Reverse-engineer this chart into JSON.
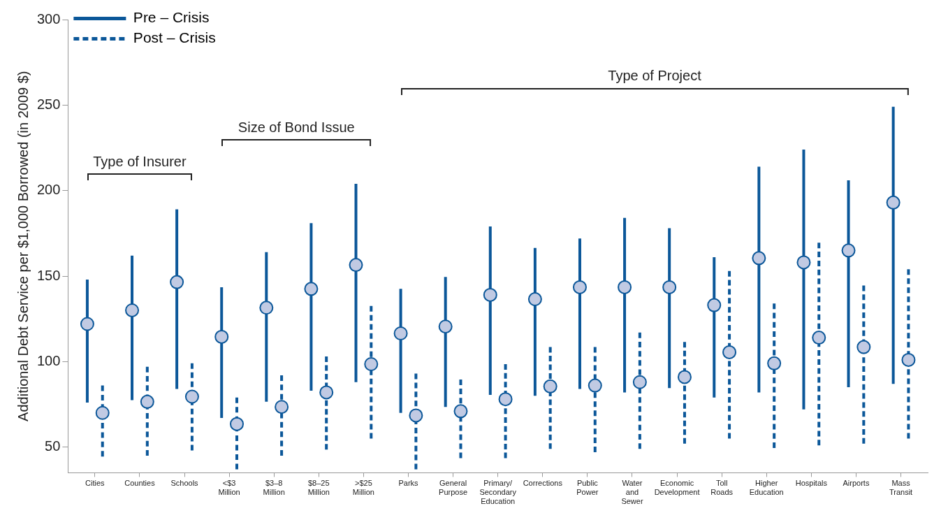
{
  "chart_data": {
    "type": "scatter",
    "ylabel": "Additional Debt Service per $1,000 Borrowed (in 2009 $)",
    "categories": [
      "Cities",
      "Counties",
      "Schools",
      "<$3 Million",
      "$3–8 Million",
      "$8–25 Million",
      ">$25 Million",
      "Parks",
      "General Purpose",
      "Primary/ Secondary Education",
      "Corrections",
      "Public Power",
      "Water and Sewer",
      "Economic Development",
      "Toll Roads",
      "Higher Education",
      "Hospitals",
      "Airports",
      "Mass Transit"
    ],
    "ylim": [
      35,
      300
    ],
    "yticks": [
      50,
      100,
      150,
      200,
      250,
      300
    ],
    "grid": false,
    "legend": "top left",
    "marker": "circle",
    "annotations": [
      "Type of Insurer",
      "Size of Bond Issue",
      "Type of Project"
    ],
    "series": [
      {
        "name": "Pre – Crisis",
        "color": "#0b5799",
        "line_style": "solid",
        "values": [
          122,
          130,
          146.5,
          114.5,
          131.5,
          142.5,
          156.5,
          116.5,
          120.5,
          139,
          136.5,
          143.5,
          143.5,
          143.5,
          133,
          160.5,
          158,
          165,
          193
        ],
        "errors": [
          [
            76,
            148
          ],
          [
            77.5,
            162
          ],
          [
            84,
            189
          ],
          [
            67,
            143.5
          ],
          [
            76.5,
            164
          ],
          [
            83,
            181
          ],
          [
            88,
            204
          ],
          [
            70,
            142.5
          ],
          [
            73.5,
            149.5
          ],
          [
            80.5,
            179
          ],
          [
            80,
            166.5
          ],
          [
            84,
            172
          ],
          [
            82,
            184
          ],
          [
            84.5,
            178
          ],
          [
            79,
            161
          ],
          [
            82,
            214
          ],
          [
            72,
            224
          ],
          [
            85,
            206
          ],
          [
            87,
            249
          ]
        ]
      },
      {
        "name": "Post – Crisis",
        "color": "#0b5799",
        "line_style": "dashed",
        "values": [
          70,
          76.5,
          79.5,
          63.5,
          73.5,
          82,
          98.5,
          68.5,
          71,
          78,
          85.5,
          86,
          88,
          91,
          105.5,
          99,
          114,
          108.5,
          101
        ],
        "errors": [
          [
            44.5,
            86
          ],
          [
            45,
            97
          ],
          [
            48,
            99
          ],
          [
            37,
            79
          ],
          [
            45,
            92
          ],
          [
            48.5,
            103
          ],
          [
            55,
            132.5
          ],
          [
            37,
            93
          ],
          [
            43.5,
            89.5
          ],
          [
            43.5,
            98.5
          ],
          [
            49,
            108.5
          ],
          [
            47,
            108.5
          ],
          [
            49,
            117
          ],
          [
            52,
            111.5
          ],
          [
            55,
            153
          ],
          [
            49.5,
            134
          ],
          [
            51,
            169.5
          ],
          [
            52,
            144.5
          ],
          [
            55,
            154
          ]
        ]
      }
    ]
  }
}
